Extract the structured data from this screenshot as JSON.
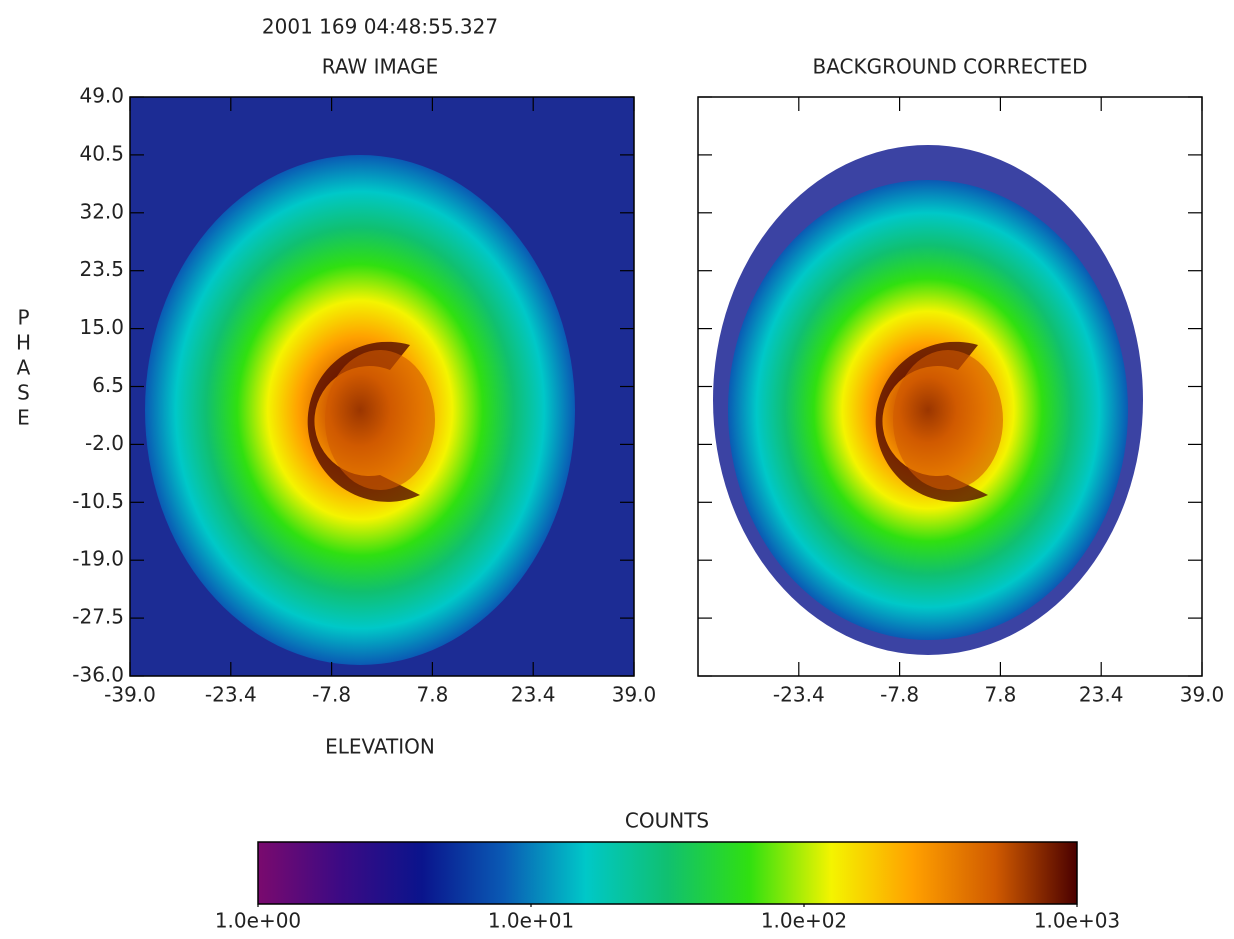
{
  "chart_data": [
    {
      "type": "heatmap",
      "subtitle": "2001 169 04:48:55.327",
      "title": "RAW IMAGE",
      "xlabel": "ELEVATION",
      "ylabel": "PHASE",
      "background": "#1c2c94",
      "xlim": [
        -39,
        39
      ],
      "xticks": [
        {
          "value": -39,
          "label": "-39.0"
        },
        -23.4,
        -7.8,
        7.8,
        23.4,
        {
          "value": 39,
          "label": "39.0"
        }
      ],
      "ylim": [
        -36,
        49
      ],
      "yticks": [
        {
          "value": -36,
          "label": "-36.0"
        },
        -27.5,
        {
          "value": -19,
          "label": "-19.0"
        },
        -10.5,
        {
          "value": -2,
          "label": "-2.0"
        },
        6.5,
        {
          "value": 15,
          "label": "15.0"
        },
        23.5,
        {
          "value": 32,
          "label": "32.0"
        },
        40.5,
        {
          "value": 49,
          "label": "49.0"
        }
      ]
    },
    {
      "type": "heatmap",
      "title": "BACKGROUND CORRECTED",
      "background": "#ffffff",
      "xlim": [
        -39,
        39
      ],
      "xticks": [
        -23.4,
        -7.8,
        7.8,
        23.4,
        {
          "value": 39,
          "label": "39.0"
        }
      ],
      "ylim": [
        -36,
        49
      ]
    }
  ],
  "colorbar": {
    "title": "COUNTS",
    "scale": "log",
    "lim": [
      1,
      1000
    ],
    "ticks": [
      {
        "value": 1,
        "label": "1.0e+00"
      },
      {
        "value": 10,
        "label": "1.0e+01"
      },
      {
        "value": 100,
        "label": "1.0e+02"
      },
      {
        "value": 1000,
        "label": "1.0e+03"
      }
    ],
    "colors": [
      "#7a0a6e",
      "#3c0a84",
      "#0a148c",
      "#0a5ab4",
      "#00c8c8",
      "#10c070",
      "#30e010",
      "#f4f400",
      "#ffa000",
      "#d05a00",
      "#4a0000"
    ]
  }
}
